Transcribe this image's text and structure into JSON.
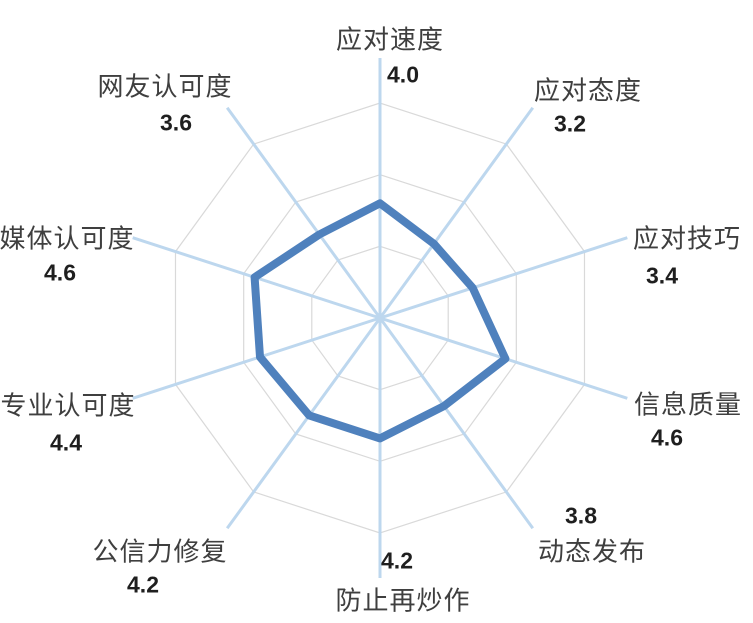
{
  "chart_data": {
    "type": "radar",
    "title": "",
    "categories": [
      "应对速度",
      "应对态度",
      "应对技巧",
      "信息质量",
      "动态发布",
      "防止再炒作",
      "公信力修复",
      "专业认可度",
      "媒体认可度",
      "网友认可度"
    ],
    "values": [
      4.0,
      3.2,
      3.4,
      4.6,
      3.8,
      4.2,
      4.2,
      4.4,
      4.6,
      3.6
    ],
    "value_labels": [
      "4.0",
      "3.2",
      "3.4",
      "4.6",
      "3.8",
      "4.2",
      "4.2",
      "4.4",
      "4.6",
      "3.6"
    ],
    "axis_min": 0,
    "axis_max": 7.5,
    "grid_rings": 3,
    "grid": true,
    "legend": false,
    "series_fill": "none",
    "colors": {
      "series_stroke": "#4F81BD",
      "axis_line": "#BDD7EE",
      "grid_ring": "#D9D9D9",
      "category_text": "#3F3F3F",
      "value_text": "#1F1F1F",
      "background": "#FFFFFF"
    }
  }
}
